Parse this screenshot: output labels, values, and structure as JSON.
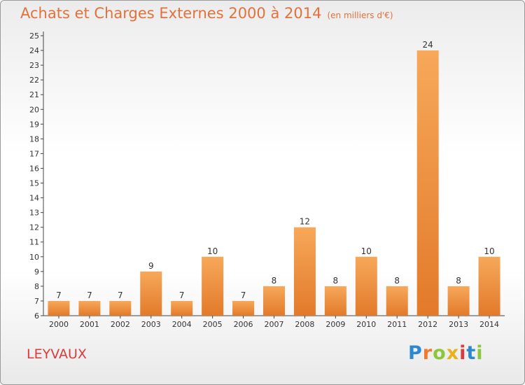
{
  "chart_data": {
    "type": "bar",
    "title": "Achats et Charges Externes 2000 à 2014",
    "unit": "(en milliers d'€)",
    "categories": [
      "2000",
      "2001",
      "2002",
      "2003",
      "2004",
      "2005",
      "2006",
      "2007",
      "2008",
      "2009",
      "2010",
      "2011",
      "2012",
      "2013",
      "2014"
    ],
    "values": [
      7,
      7,
      7,
      9,
      7,
      10,
      7,
      8,
      12,
      8,
      10,
      8,
      24,
      8,
      10
    ],
    "ylim": [
      6,
      25
    ],
    "yticks": [
      6,
      7,
      8,
      9,
      10,
      11,
      12,
      13,
      14,
      15,
      16,
      17,
      18,
      19,
      20,
      21,
      22,
      23,
      24,
      25
    ],
    "xlabel": "",
    "ylabel": "",
    "grid": false,
    "bar_color_light": "#f7a85a",
    "bar_color_dark": "#e27a2a"
  },
  "place_name": "LEYVAUX",
  "logo": {
    "letters": [
      "P",
      "r",
      "o",
      "x",
      "i",
      "t",
      "i"
    ]
  },
  "colors": {
    "title": "#e2713c",
    "place": "#dc3b3b"
  }
}
